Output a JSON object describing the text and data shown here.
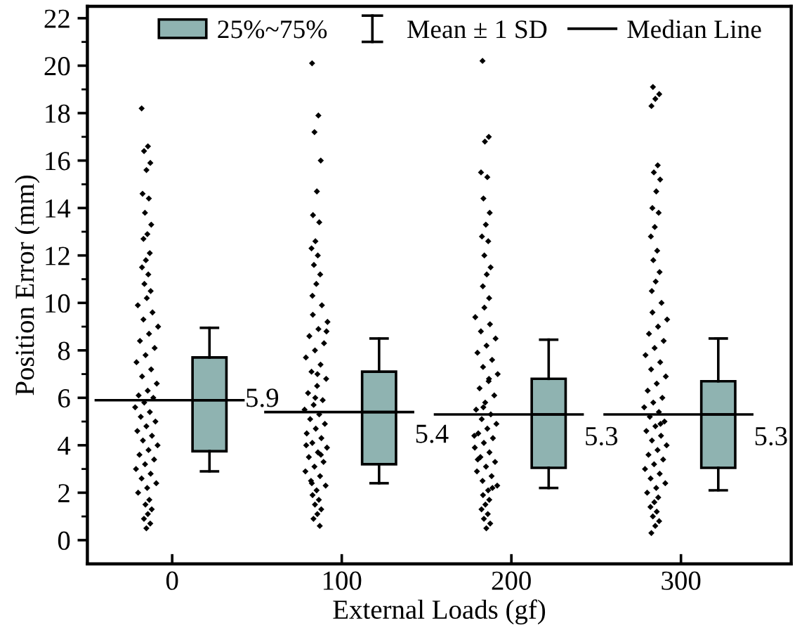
{
  "chart_data": {
    "type": "box",
    "xlabel": "External Loads (gf)",
    "ylabel": "Position Error (mm)",
    "categories": [
      "0",
      "100",
      "200",
      "300"
    ],
    "ylim": [
      -1,
      22.5
    ],
    "yticks": [
      0,
      2,
      4,
      6,
      8,
      10,
      12,
      14,
      16,
      18,
      20,
      22
    ],
    "grid": false,
    "legend": "top",
    "annotations": [
      "Mean ± 1 SD",
      "Median Line"
    ],
    "series": [
      {
        "name": "25%~75%",
        "color": "#8fb3b1",
        "value_labels": [
          "5.9",
          "5.4",
          "5.3",
          "5.3"
        ],
        "boxes": [
          {
            "low": 2.9,
            "q1": 3.75,
            "median": 5.9,
            "q3": 7.7,
            "high": 8.95
          },
          {
            "low": 2.4,
            "q1": 3.2,
            "median": 5.4,
            "q3": 7.1,
            "high": 8.5
          },
          {
            "low": 2.2,
            "q1": 3.05,
            "median": 5.3,
            "q3": 6.8,
            "high": 8.45
          },
          {
            "low": 2.1,
            "q1": 3.05,
            "median": 5.3,
            "q3": 6.7,
            "high": 8.5
          }
        ]
      },
      {
        "type": "scatter",
        "color": "#000000",
        "marker": "diamond",
        "x": [
          "0",
          "0",
          "0",
          "0",
          "0",
          "0",
          "0",
          "0",
          "0",
          "0",
          "0",
          "0",
          "0",
          "0",
          "0",
          "0",
          "0",
          "0",
          "0",
          "0",
          "0",
          "0",
          "0",
          "0",
          "0",
          "0",
          "0",
          "0",
          "0",
          "0",
          "0",
          "0",
          "0",
          "0",
          "0",
          "0",
          "0",
          "0",
          "0",
          "0",
          "0",
          "0",
          "0",
          "0",
          "0",
          "0",
          "0",
          "0",
          "0",
          "0",
          "0",
          "0",
          "0",
          "0",
          "0",
          "0",
          "0",
          "0",
          "0",
          "0",
          "100",
          "100",
          "100",
          "100",
          "100",
          "100",
          "100",
          "100",
          "100",
          "100",
          "100",
          "100",
          "100",
          "100",
          "100",
          "100",
          "100",
          "100",
          "100",
          "100",
          "100",
          "100",
          "100",
          "100",
          "100",
          "100",
          "100",
          "100",
          "100",
          "100",
          "100",
          "100",
          "100",
          "100",
          "100",
          "100",
          "100",
          "100",
          "100",
          "100",
          "100",
          "100",
          "100",
          "100",
          "100",
          "100",
          "100",
          "100",
          "100",
          "100",
          "100",
          "100",
          "100",
          "100",
          "100",
          "100",
          "100",
          "100",
          "100",
          "100",
          "200",
          "200",
          "200",
          "200",
          "200",
          "200",
          "200",
          "200",
          "200",
          "200",
          "200",
          "200",
          "200",
          "200",
          "200",
          "200",
          "200",
          "200",
          "200",
          "200",
          "200",
          "200",
          "200",
          "200",
          "200",
          "200",
          "200",
          "200",
          "200",
          "200",
          "200",
          "200",
          "200",
          "200",
          "200",
          "200",
          "200",
          "200",
          "200",
          "200",
          "200",
          "200",
          "200",
          "200",
          "200",
          "200",
          "200",
          "200",
          "200",
          "200",
          "200",
          "200",
          "200",
          "200",
          "200",
          "200",
          "200",
          "200",
          "200",
          "200",
          "300",
          "300",
          "300",
          "300",
          "300",
          "300",
          "300",
          "300",
          "300",
          "300",
          "300",
          "300",
          "300",
          "300",
          "300",
          "300",
          "300",
          "300",
          "300",
          "300",
          "300",
          "300",
          "300",
          "300",
          "300",
          "300",
          "300",
          "300",
          "300",
          "300",
          "300",
          "300",
          "300",
          "300",
          "300",
          "300",
          "300",
          "300",
          "300",
          "300",
          "300",
          "300",
          "300",
          "300",
          "300",
          "300",
          "300",
          "300",
          "300",
          "300",
          "300",
          "300",
          "300",
          "300",
          "300",
          "300",
          "300",
          "300",
          "300",
          "300"
        ],
        "values": [
          18.2,
          16.6,
          16.4,
          15.9,
          15.6,
          14.6,
          14.4,
          13.8,
          13.3,
          12.9,
          12.7,
          12.1,
          11.8,
          11.5,
          11.2,
          10.8,
          10.5,
          10.2,
          9.9,
          9.6,
          9.3,
          9.0,
          8.7,
          8.4,
          8.1,
          7.8,
          7.5,
          7.2,
          6.9,
          6.6,
          6.3,
          6.1,
          6.0,
          5.8,
          5.6,
          5.4,
          5.2,
          5.0,
          4.8,
          4.6,
          4.4,
          4.2,
          4.0,
          3.8,
          3.6,
          3.4,
          3.2,
          3.0,
          2.8,
          2.6,
          2.4,
          2.2,
          2.0,
          1.7,
          1.5,
          1.3,
          1.1,
          0.9,
          0.7,
          0.5,
          20.1,
          17.9,
          17.2,
          16.0,
          14.7,
          13.7,
          13.4,
          12.6,
          12.3,
          12.0,
          11.6,
          11.2,
          10.8,
          10.3,
          9.9,
          9.5,
          9.2,
          8.9,
          8.6,
          8.3,
          8.0,
          7.7,
          7.4,
          7.1,
          6.8,
          6.5,
          6.2,
          5.9,
          5.7,
          5.5,
          5.3,
          5.1,
          4.9,
          4.7,
          4.5,
          4.3,
          4.1,
          3.9,
          3.7,
          3.5,
          3.3,
          3.1,
          2.9,
          2.7,
          2.5,
          2.3,
          2.1,
          1.9,
          1.7,
          1.5,
          1.3,
          1.1,
          0.9,
          0.6,
          6.0,
          4.0,
          3.6,
          2.4,
          8.8,
          7.0,
          20.2,
          17.0,
          16.8,
          15.5,
          15.3,
          14.4,
          13.8,
          13.3,
          12.8,
          12.6,
          12.0,
          11.5,
          11.2,
          10.7,
          10.2,
          9.8,
          9.4,
          9.1,
          8.8,
          8.5,
          8.2,
          7.9,
          7.6,
          7.3,
          7.0,
          6.7,
          6.4,
          6.1,
          5.8,
          5.5,
          5.3,
          5.1,
          4.9,
          4.7,
          4.5,
          4.3,
          4.1,
          3.9,
          3.7,
          3.5,
          3.3,
          3.1,
          2.9,
          2.7,
          2.5,
          2.3,
          2.1,
          1.9,
          1.7,
          1.5,
          1.3,
          1.1,
          0.9,
          0.7,
          0.5,
          3.4,
          2.2,
          5.6,
          4.4,
          6.8,
          19.1,
          18.8,
          18.6,
          18.3,
          15.8,
          15.5,
          15.2,
          14.7,
          14.0,
          13.8,
          13.2,
          12.8,
          12.2,
          11.8,
          11.3,
          10.9,
          10.5,
          10.0,
          9.6,
          9.3,
          9.0,
          8.7,
          8.4,
          8.1,
          7.8,
          7.5,
          7.2,
          6.9,
          6.6,
          6.3,
          6.0,
          5.8,
          5.6,
          5.4,
          5.2,
          5.0,
          4.8,
          4.6,
          4.4,
          4.2,
          4.0,
          3.8,
          3.6,
          3.4,
          3.2,
          3.0,
          2.8,
          2.6,
          2.4,
          2.2,
          2.0,
          1.8,
          1.6,
          1.4,
          1.2,
          1.0,
          0.8,
          0.6,
          0.3,
          4.9
        ]
      }
    ]
  }
}
